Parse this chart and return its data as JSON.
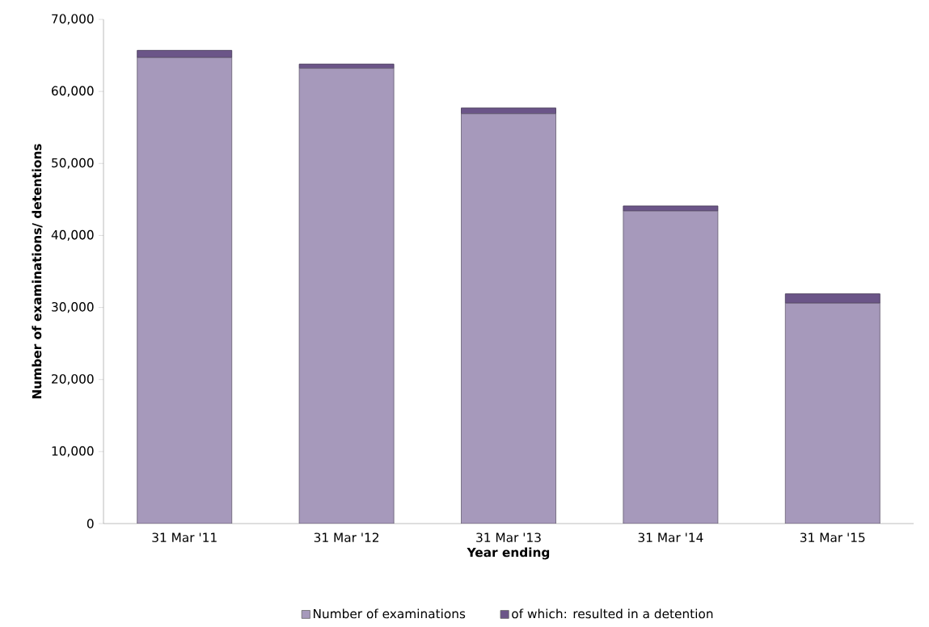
{
  "chart_data": {
    "type": "bar",
    "stacked": true,
    "xlabel": "Year ending",
    "ylabel": "Number of examinations/ detentions",
    "categories": [
      "31 Mar '11",
      "31 Mar '12",
      "31 Mar '13",
      "31 Mar '14",
      "31 Mar '15"
    ],
    "series": [
      {
        "name": "Number of examinations",
        "color": "#a699bb",
        "values": [
          64700,
          63200,
          56900,
          43400,
          30600
        ]
      },
      {
        "name": "of which: resulted in a detention",
        "color": "#6b5588",
        "values": [
          1000,
          600,
          800,
          700,
          1300
        ]
      }
    ],
    "ylim": [
      0,
      70000
    ],
    "yticks": [
      {
        "value": 0,
        "label": "0"
      },
      {
        "value": 10000,
        "label": "10,000"
      },
      {
        "value": 20000,
        "label": "20,000"
      },
      {
        "value": 30000,
        "label": "30,000"
      },
      {
        "value": 40000,
        "label": "40,000"
      },
      {
        "value": 50000,
        "label": "50,000"
      },
      {
        "value": 60000,
        "label": "60,000"
      },
      {
        "value": 70000,
        "label": "70,000"
      }
    ],
    "grid": false,
    "legend": "bottom"
  }
}
